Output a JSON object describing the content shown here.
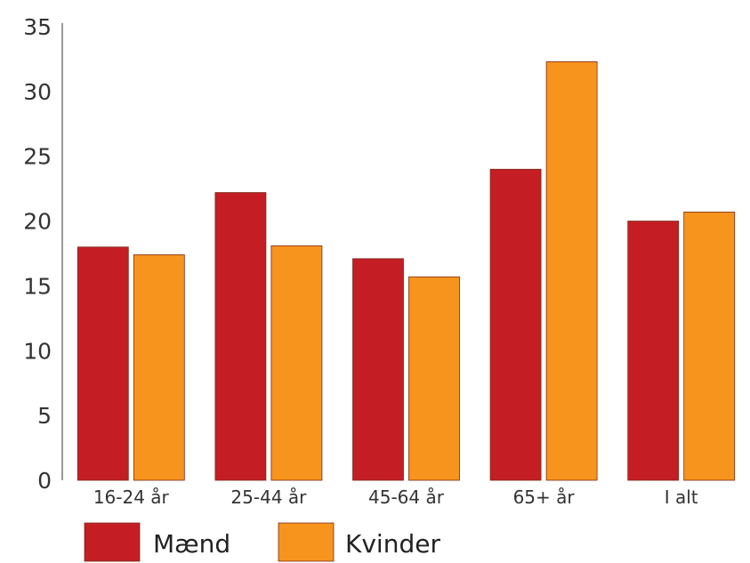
{
  "chart_data": {
    "type": "bar",
    "categories": [
      "16-24 år",
      "25-44 år",
      "45-64 år",
      "65+ år",
      "I alt"
    ],
    "series": [
      {
        "name": "Mænd",
        "values": [
          18.0,
          22.2,
          17.1,
          24.0,
          20.0
        ],
        "color": "#c41e24"
      },
      {
        "name": "Kvinder",
        "values": [
          17.4,
          18.1,
          15.7,
          32.3,
          20.7
        ],
        "color": "#f7941d"
      }
    ],
    "title": "",
    "xlabel": "",
    "ylabel": "",
    "ylim": [
      0,
      35
    ],
    "yticks": [
      0,
      5,
      10,
      15,
      20,
      25,
      30,
      35
    ],
    "grid": false,
    "legend": "bottom-left"
  }
}
